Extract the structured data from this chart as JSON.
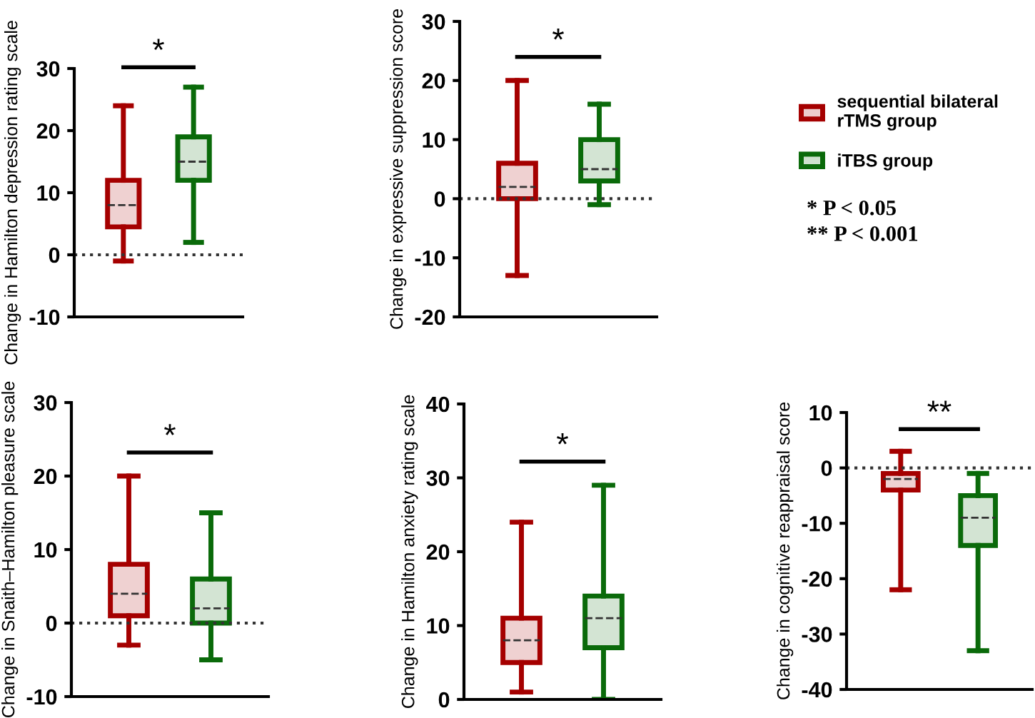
{
  "chart_data": [
    {
      "type": "box",
      "ylabel": "Change in Hamilton depression rating scale",
      "categories": [
        null,
        null
      ],
      "ylim": [
        -10,
        30
      ],
      "yticks": [
        -10,
        0,
        10,
        20,
        30
      ],
      "grid": false,
      "legend": "right",
      "annotations": [
        "*"
      ],
      "ref_lines": [
        {
          "axis": "y",
          "value": 0,
          "line_style": "dotted"
        }
      ],
      "series": [
        {
          "name": "sequential bilateral rTMS group",
          "color": "#a50000",
          "boxes": [
            {
              "low": -1,
              "q1": 4.5,
              "median": 8,
              "q3": 12,
              "high": 24
            },
            null
          ]
        },
        {
          "name": "iTBS group",
          "color": "#0a6a0a",
          "boxes": [
            null,
            {
              "low": 2,
              "q1": 12,
              "median": 15,
              "q3": 19,
              "high": 27
            }
          ]
        }
      ]
    },
    {
      "type": "box",
      "ylabel": "Change in expressive suppression score",
      "categories": [
        null,
        null
      ],
      "ylim": [
        -20,
        30
      ],
      "yticks": [
        -20,
        -10,
        0,
        10,
        20,
        30
      ],
      "grid": false,
      "annotations": [
        "*",
        "* P < 0.05\n** P < 0.001"
      ],
      "ref_lines": [
        {
          "axis": "y",
          "value": 0,
          "line_style": "dotted"
        }
      ],
      "series": [
        {
          "color": "#a50000",
          "boxes": [
            {
              "low": -13,
              "q1": 0,
              "median": 2,
              "q3": 6,
              "high": 20
            },
            null
          ]
        },
        {
          "color": "#0a6a0a",
          "boxes": [
            null,
            {
              "low": -1,
              "q1": 3,
              "median": 5,
              "q3": 10,
              "high": 16
            }
          ]
        }
      ]
    },
    {
      "type": "box",
      "ylabel": "Change in Snaith–Hamilton pleasure scale",
      "categories": [
        null,
        null
      ],
      "ylim": [
        -10,
        30
      ],
      "yticks": [
        -10,
        0,
        10,
        20,
        30
      ],
      "grid": false,
      "annotations": [
        "*"
      ],
      "ref_lines": [
        {
          "axis": "y",
          "value": 0,
          "line_style": "dotted"
        }
      ],
      "series": [
        {
          "color": "#a50000",
          "boxes": [
            {
              "low": -3,
              "q1": 1,
              "median": 4,
              "q3": 8,
              "high": 20
            },
            null
          ]
        },
        {
          "color": "#0a6a0a",
          "boxes": [
            null,
            {
              "low": -5,
              "q1": 0,
              "median": 2,
              "q3": 6,
              "high": 15
            }
          ]
        }
      ]
    },
    {
      "type": "box",
      "ylabel": "Change in Hamilton anxiety rating scale",
      "categories": [
        null,
        null
      ],
      "ylim": [
        0,
        40
      ],
      "yticks": [
        0,
        10,
        20,
        30,
        40
      ],
      "grid": false,
      "annotations": [
        "*"
      ],
      "series": [
        {
          "color": "#a50000",
          "boxes": [
            {
              "low": 1,
              "q1": 5,
              "median": 8,
              "q3": 11,
              "high": 24
            },
            null
          ]
        },
        {
          "color": "#0a6a0a",
          "boxes": [
            null,
            {
              "low": 0,
              "q1": 7,
              "median": 11,
              "q3": 14,
              "high": 29
            }
          ]
        }
      ]
    },
    {
      "type": "box",
      "ylabel": "Change in cognitive reappraisal score",
      "categories": [
        null,
        null
      ],
      "ylim": [
        -40,
        10
      ],
      "yticks": [
        -40,
        -30,
        -20,
        -10,
        0,
        10
      ],
      "grid": false,
      "annotations": [
        "**"
      ],
      "ref_lines": [
        {
          "axis": "y",
          "value": 0,
          "line_style": "dotted"
        }
      ],
      "series": [
        {
          "color": "#a50000",
          "boxes": [
            {
              "low": -22,
              "q1": -4,
              "median": -2,
              "q3": -1,
              "high": 3
            },
            null
          ]
        },
        {
          "color": "#0a6a0a",
          "boxes": [
            null,
            {
              "low": -33,
              "q1": -14,
              "median": -9,
              "q3": -5,
              "high": -1
            }
          ]
        }
      ]
    }
  ]
}
